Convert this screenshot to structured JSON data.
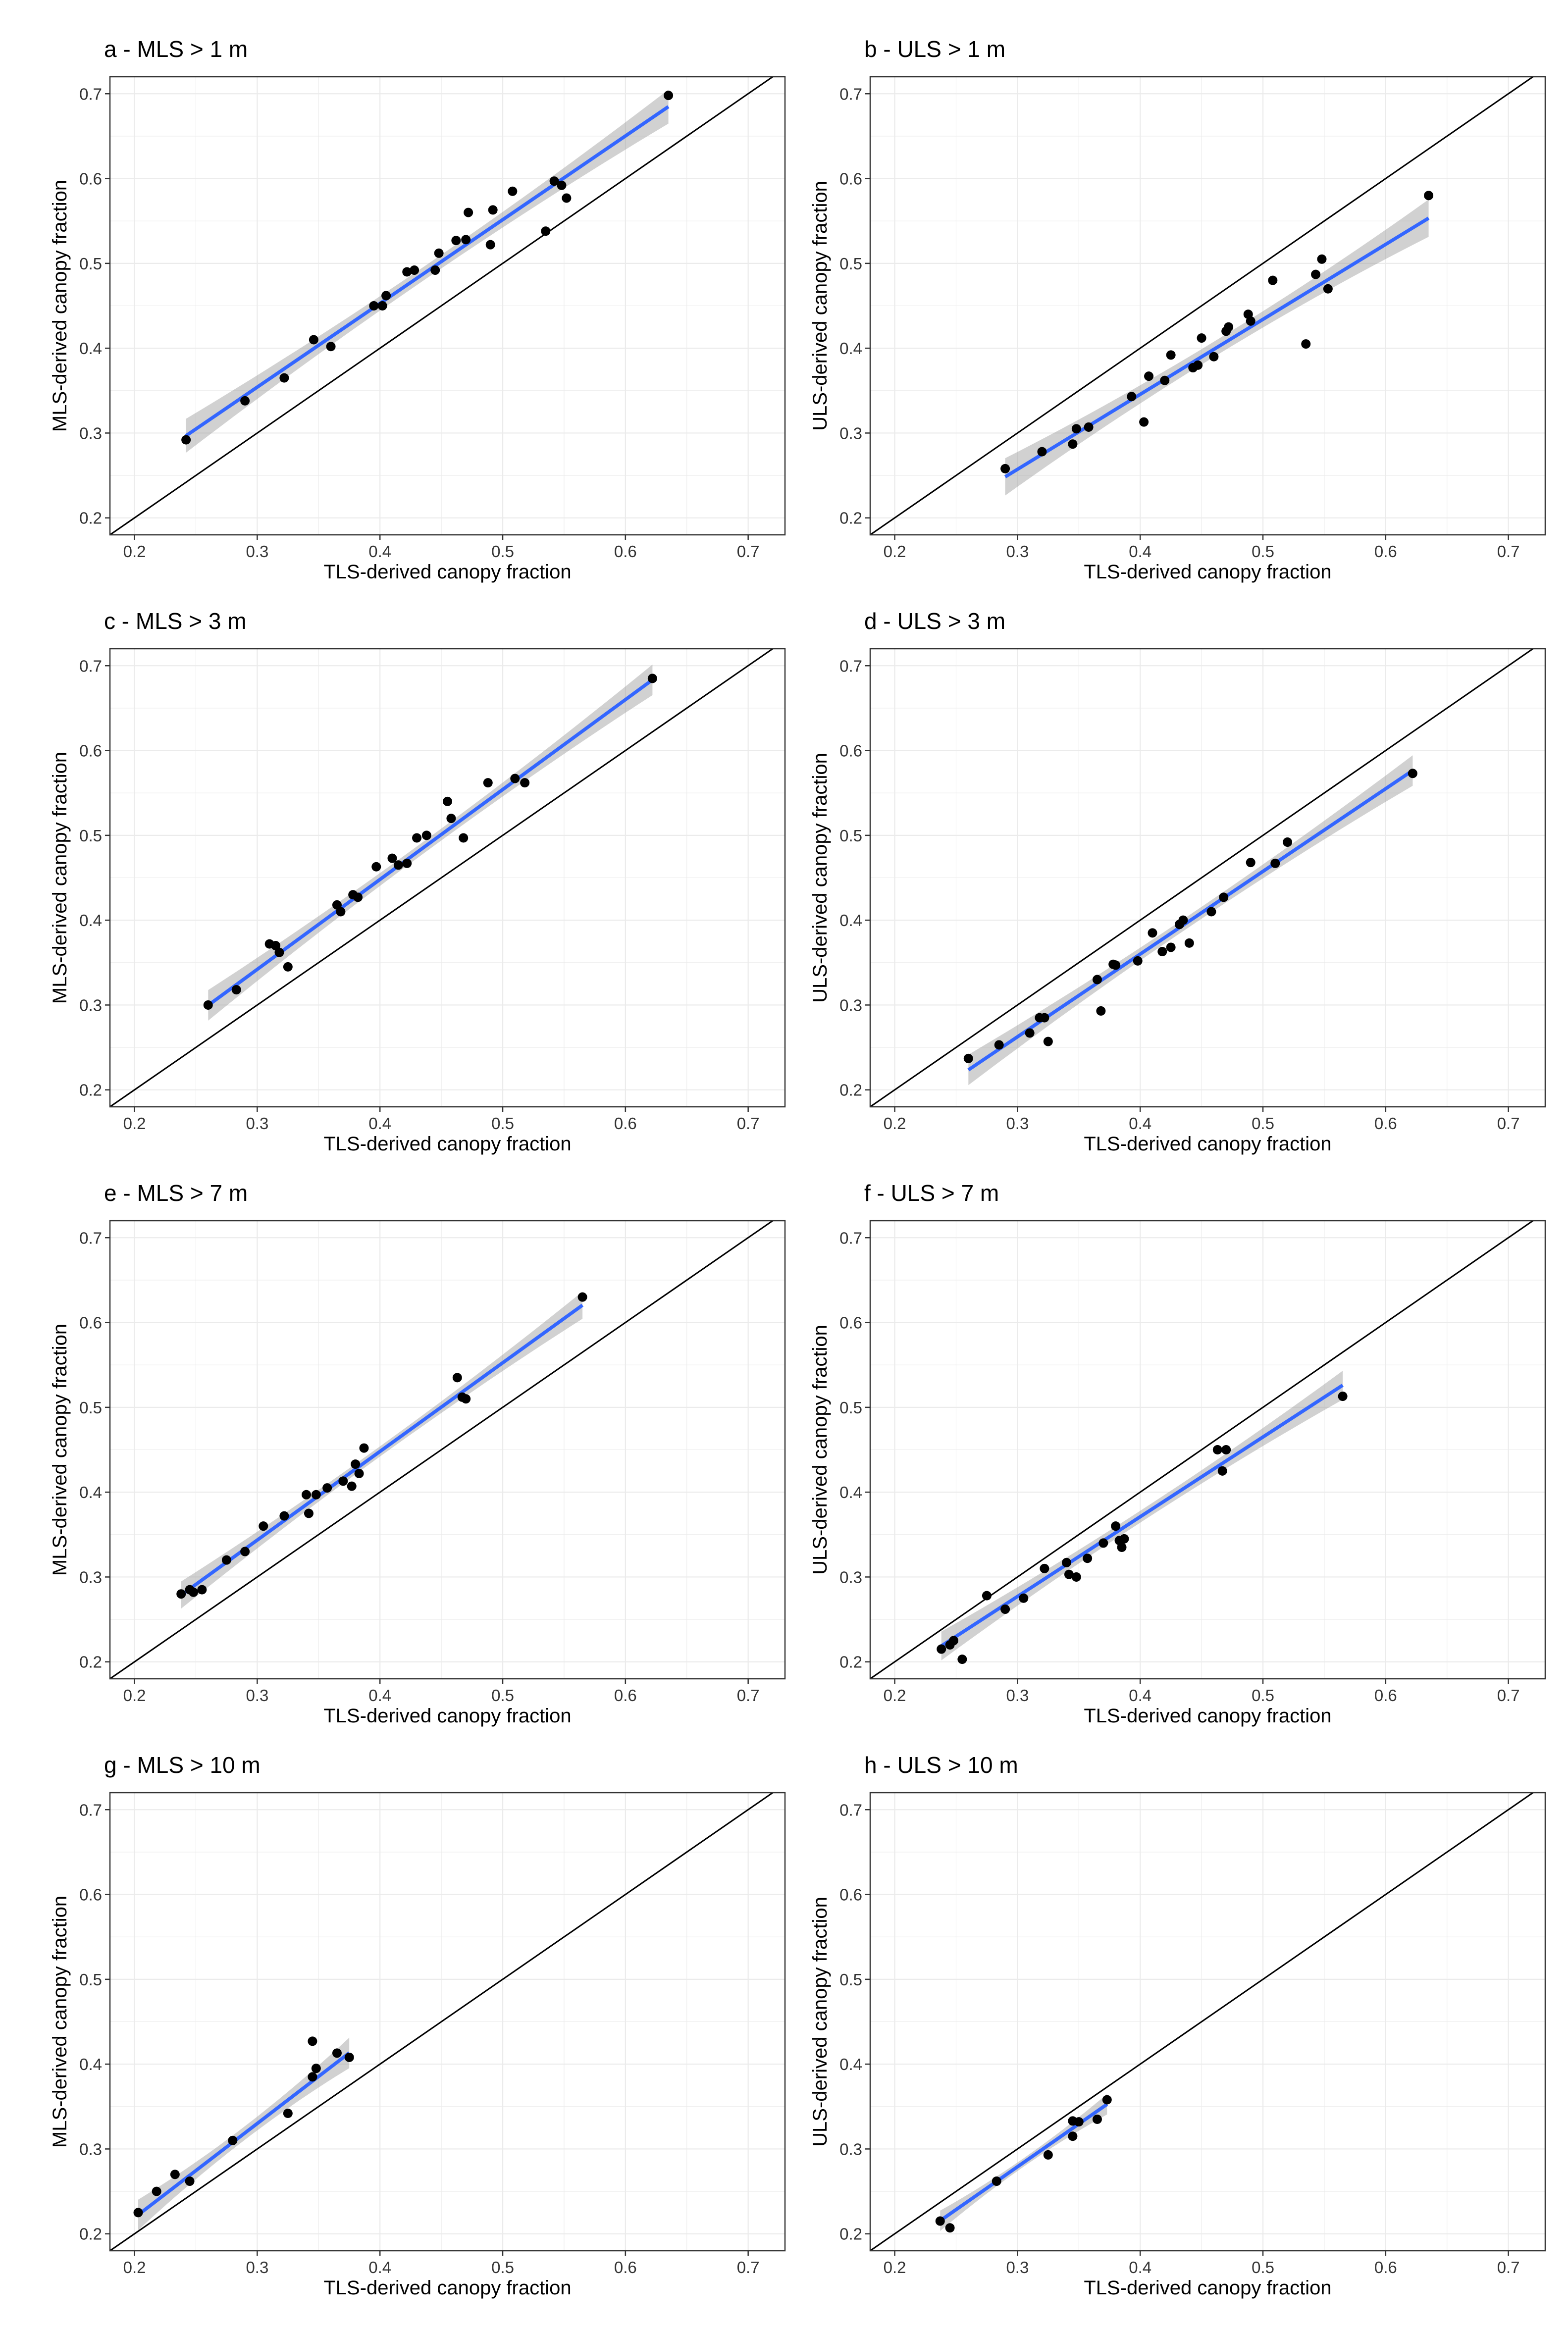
{
  "figure": {
    "panels": [
      {
        "title": "a - MLS > 1 m",
        "xlabel": "TLS-derived canopy fraction",
        "ylabel": "MLS-derived canopy fraction",
        "x_ticks": [
          "0.2",
          "0.3",
          "0.4",
          "0.5",
          "0.6",
          "0.7"
        ],
        "y_ticks": [
          "0.2",
          "0.3",
          "0.4",
          "0.5",
          "0.6",
          "0.7"
        ]
      },
      {
        "title": "b - ULS > 1 m",
        "xlabel": "TLS-derived canopy fraction",
        "ylabel": "ULS-derived canopy fraction",
        "x_ticks": [
          "0.2",
          "0.3",
          "0.4",
          "0.5",
          "0.6",
          "0.7"
        ],
        "y_ticks": [
          "0.2",
          "0.3",
          "0.4",
          "0.5",
          "0.6",
          "0.7"
        ]
      },
      {
        "title": "c - MLS > 3 m",
        "xlabel": "TLS-derived canopy fraction",
        "ylabel": "MLS-derived canopy fraction",
        "x_ticks": [
          "0.2",
          "0.3",
          "0.4",
          "0.5",
          "0.6",
          "0.7"
        ],
        "y_ticks": [
          "0.2",
          "0.3",
          "0.4",
          "0.5",
          "0.6",
          "0.7"
        ]
      },
      {
        "title": "d - ULS > 3 m",
        "xlabel": "TLS-derived canopy fraction",
        "ylabel": "ULS-derived canopy fraction",
        "x_ticks": [
          "0.2",
          "0.3",
          "0.4",
          "0.5",
          "0.6",
          "0.7"
        ],
        "y_ticks": [
          "0.2",
          "0.3",
          "0.4",
          "0.5",
          "0.6",
          "0.7"
        ]
      },
      {
        "title": "e - MLS > 7 m",
        "xlabel": "TLS-derived canopy fraction",
        "ylabel": "MLS-derived canopy fraction",
        "x_ticks": [
          "0.2",
          "0.3",
          "0.4",
          "0.5",
          "0.6",
          "0.7"
        ],
        "y_ticks": [
          "0.2",
          "0.3",
          "0.4",
          "0.5",
          "0.6",
          "0.7"
        ]
      },
      {
        "title": "f - ULS > 7 m",
        "xlabel": "TLS-derived canopy fraction",
        "ylabel": "ULS-derived canopy fraction",
        "x_ticks": [
          "0.2",
          "0.3",
          "0.4",
          "0.5",
          "0.6",
          "0.7"
        ],
        "y_ticks": [
          "0.2",
          "0.3",
          "0.4",
          "0.5",
          "0.6",
          "0.7"
        ]
      },
      {
        "title": "g - MLS > 10 m",
        "xlabel": "TLS-derived canopy fraction",
        "ylabel": "MLS-derived canopy fraction",
        "x_ticks": [
          "0.2",
          "0.3",
          "0.4",
          "0.5",
          "0.6",
          "0.7"
        ],
        "y_ticks": [
          "0.2",
          "0.3",
          "0.4",
          "0.5",
          "0.6",
          "0.7"
        ]
      },
      {
        "title": "h - ULS > 10 m",
        "xlabel": "TLS-derived canopy fraction",
        "ylabel": "ULS-derived canopy fraction",
        "x_ticks": [
          "0.2",
          "0.3",
          "0.4",
          "0.5",
          "0.6",
          "0.7"
        ],
        "y_ticks": [
          "0.2",
          "0.3",
          "0.4",
          "0.5",
          "0.6",
          "0.7"
        ]
      }
    ]
  },
  "colors": {
    "points": "#000000",
    "fit_line": "#3366FF",
    "confidence_band": "#999999",
    "one_to_one_line": "#000000",
    "grid": "#EBEBEB",
    "panel_border": "#333333"
  },
  "chart_data": [
    {
      "type": "scatter",
      "title": "a - MLS > 1 m",
      "xlabel": "TLS-derived canopy fraction",
      "ylabel": "MLS-derived canopy fraction",
      "xlim": [
        0.18,
        0.73
      ],
      "ylim": [
        0.18,
        0.72
      ],
      "grid": true,
      "identity_line": true,
      "points": [
        [
          0.242,
          0.292
        ],
        [
          0.29,
          0.338
        ],
        [
          0.322,
          0.365
        ],
        [
          0.346,
          0.41
        ],
        [
          0.36,
          0.402
        ],
        [
          0.395,
          0.45
        ],
        [
          0.402,
          0.45
        ],
        [
          0.405,
          0.462
        ],
        [
          0.422,
          0.49
        ],
        [
          0.428,
          0.492
        ],
        [
          0.445,
          0.492
        ],
        [
          0.448,
          0.512
        ],
        [
          0.462,
          0.527
        ],
        [
          0.47,
          0.528
        ],
        [
          0.472,
          0.56
        ],
        [
          0.49,
          0.522
        ],
        [
          0.492,
          0.563
        ],
        [
          0.508,
          0.585
        ],
        [
          0.535,
          0.538
        ],
        [
          0.542,
          0.597
        ],
        [
          0.548,
          0.592
        ],
        [
          0.552,
          0.577
        ],
        [
          0.635,
          0.698
        ]
      ],
      "fit": {
        "x_range": [
          0.242,
          0.635
        ],
        "slope": 0.987,
        "intercept": 0.058,
        "ci_half_width_ends": 0.02,
        "ci_half_width_mid": 0.008
      }
    },
    {
      "type": "scatter",
      "title": "b - ULS > 1 m",
      "xlabel": "TLS-derived canopy fraction",
      "ylabel": "ULS-derived canopy fraction",
      "xlim": [
        0.18,
        0.73
      ],
      "ylim": [
        0.18,
        0.72
      ],
      "grid": true,
      "identity_line": true,
      "points": [
        [
          0.29,
          0.258
        ],
        [
          0.32,
          0.278
        ],
        [
          0.345,
          0.287
        ],
        [
          0.348,
          0.305
        ],
        [
          0.358,
          0.307
        ],
        [
          0.393,
          0.343
        ],
        [
          0.403,
          0.313
        ],
        [
          0.407,
          0.367
        ],
        [
          0.42,
          0.362
        ],
        [
          0.425,
          0.392
        ],
        [
          0.443,
          0.377
        ],
        [
          0.447,
          0.38
        ],
        [
          0.45,
          0.412
        ],
        [
          0.46,
          0.39
        ],
        [
          0.47,
          0.42
        ],
        [
          0.472,
          0.425
        ],
        [
          0.488,
          0.44
        ],
        [
          0.49,
          0.432
        ],
        [
          0.508,
          0.48
        ],
        [
          0.535,
          0.405
        ],
        [
          0.543,
          0.487
        ],
        [
          0.548,
          0.505
        ],
        [
          0.553,
          0.47
        ],
        [
          0.635,
          0.58
        ]
      ],
      "fit": {
        "x_range": [
          0.29,
          0.635
        ],
        "slope": 0.884,
        "intercept": -0.008,
        "ci_half_width_ends": 0.022,
        "ci_half_width_mid": 0.009
      }
    },
    {
      "type": "scatter",
      "title": "c - MLS > 3 m",
      "xlabel": "TLS-derived canopy fraction",
      "ylabel": "MLS-derived canopy fraction",
      "xlim": [
        0.18,
        0.73
      ],
      "ylim": [
        0.18,
        0.72
      ],
      "grid": true,
      "identity_line": true,
      "points": [
        [
          0.26,
          0.3
        ],
        [
          0.283,
          0.318
        ],
        [
          0.31,
          0.372
        ],
        [
          0.315,
          0.37
        ],
        [
          0.318,
          0.362
        ],
        [
          0.325,
          0.345
        ],
        [
          0.365,
          0.418
        ],
        [
          0.368,
          0.41
        ],
        [
          0.378,
          0.43
        ],
        [
          0.382,
          0.427
        ],
        [
          0.397,
          0.463
        ],
        [
          0.41,
          0.473
        ],
        [
          0.415,
          0.465
        ],
        [
          0.422,
          0.467
        ],
        [
          0.43,
          0.497
        ],
        [
          0.438,
          0.5
        ],
        [
          0.455,
          0.54
        ],
        [
          0.458,
          0.52
        ],
        [
          0.468,
          0.497
        ],
        [
          0.488,
          0.562
        ],
        [
          0.51,
          0.567
        ],
        [
          0.518,
          0.562
        ],
        [
          0.622,
          0.685
        ]
      ],
      "fit": {
        "x_range": [
          0.26,
          0.622
        ],
        "slope": 1.06,
        "intercept": 0.024,
        "ci_half_width_ends": 0.018,
        "ci_half_width_mid": 0.007
      }
    },
    {
      "type": "scatter",
      "title": "d - ULS > 3 m",
      "xlabel": "TLS-derived canopy fraction",
      "ylabel": "ULS-derived canopy fraction",
      "xlim": [
        0.18,
        0.73
      ],
      "ylim": [
        0.18,
        0.72
      ],
      "grid": true,
      "identity_line": true,
      "points": [
        [
          0.26,
          0.237
        ],
        [
          0.285,
          0.253
        ],
        [
          0.31,
          0.267
        ],
        [
          0.318,
          0.285
        ],
        [
          0.322,
          0.285
        ],
        [
          0.325,
          0.257
        ],
        [
          0.365,
          0.33
        ],
        [
          0.368,
          0.293
        ],
        [
          0.378,
          0.348
        ],
        [
          0.38,
          0.347
        ],
        [
          0.398,
          0.352
        ],
        [
          0.41,
          0.385
        ],
        [
          0.418,
          0.363
        ],
        [
          0.425,
          0.368
        ],
        [
          0.432,
          0.395
        ],
        [
          0.435,
          0.4
        ],
        [
          0.44,
          0.373
        ],
        [
          0.458,
          0.41
        ],
        [
          0.468,
          0.427
        ],
        [
          0.49,
          0.468
        ],
        [
          0.51,
          0.467
        ],
        [
          0.52,
          0.492
        ],
        [
          0.622,
          0.573
        ]
      ],
      "fit": {
        "x_range": [
          0.26,
          0.622
        ],
        "slope": 0.975,
        "intercept": -0.03,
        "ci_half_width_ends": 0.018,
        "ci_half_width_mid": 0.007
      }
    },
    {
      "type": "scatter",
      "title": "e - MLS > 7 m",
      "xlabel": "TLS-derived canopy fraction",
      "ylabel": "MLS-derived canopy fraction",
      "xlim": [
        0.18,
        0.73
      ],
      "ylim": [
        0.18,
        0.72
      ],
      "grid": true,
      "identity_line": true,
      "points": [
        [
          0.238,
          0.28
        ],
        [
          0.245,
          0.285
        ],
        [
          0.248,
          0.282
        ],
        [
          0.255,
          0.285
        ],
        [
          0.275,
          0.32
        ],
        [
          0.29,
          0.33
        ],
        [
          0.305,
          0.36
        ],
        [
          0.322,
          0.372
        ],
        [
          0.34,
          0.397
        ],
        [
          0.342,
          0.375
        ],
        [
          0.348,
          0.397
        ],
        [
          0.357,
          0.405
        ],
        [
          0.37,
          0.413
        ],
        [
          0.377,
          0.407
        ],
        [
          0.38,
          0.433
        ],
        [
          0.383,
          0.422
        ],
        [
          0.387,
          0.452
        ],
        [
          0.463,
          0.535
        ],
        [
          0.467,
          0.512
        ],
        [
          0.47,
          0.51
        ],
        [
          0.565,
          0.63
        ]
      ],
      "fit": {
        "x_range": [
          0.238,
          0.565
        ],
        "slope": 1.045,
        "intercept": 0.03,
        "ci_half_width_ends": 0.016,
        "ci_half_width_mid": 0.006
      }
    },
    {
      "type": "scatter",
      "title": "f - ULS > 7 m",
      "xlabel": "TLS-derived canopy fraction",
      "ylabel": "ULS-derived canopy fraction",
      "xlim": [
        0.18,
        0.73
      ],
      "ylim": [
        0.18,
        0.72
      ],
      "grid": true,
      "identity_line": true,
      "points": [
        [
          0.238,
          0.215
        ],
        [
          0.245,
          0.22
        ],
        [
          0.248,
          0.225
        ],
        [
          0.255,
          0.203
        ],
        [
          0.275,
          0.278
        ],
        [
          0.29,
          0.262
        ],
        [
          0.305,
          0.275
        ],
        [
          0.322,
          0.31
        ],
        [
          0.34,
          0.317
        ],
        [
          0.342,
          0.303
        ],
        [
          0.348,
          0.3
        ],
        [
          0.357,
          0.322
        ],
        [
          0.37,
          0.34
        ],
        [
          0.38,
          0.36
        ],
        [
          0.383,
          0.343
        ],
        [
          0.385,
          0.335
        ],
        [
          0.387,
          0.345
        ],
        [
          0.463,
          0.45
        ],
        [
          0.467,
          0.425
        ],
        [
          0.47,
          0.45
        ],
        [
          0.565,
          0.513
        ]
      ],
      "fit": {
        "x_range": [
          0.238,
          0.565
        ],
        "slope": 0.94,
        "intercept": -0.005,
        "ci_half_width_ends": 0.017,
        "ci_half_width_mid": 0.007
      }
    },
    {
      "type": "scatter",
      "title": "g - MLS > 10 m",
      "xlabel": "TLS-derived canopy fraction",
      "ylabel": "MLS-derived canopy fraction",
      "xlim": [
        0.18,
        0.73
      ],
      "ylim": [
        0.18,
        0.72
      ],
      "grid": true,
      "identity_line": true,
      "points": [
        [
          0.203,
          0.225
        ],
        [
          0.218,
          0.25
        ],
        [
          0.233,
          0.27
        ],
        [
          0.245,
          0.262
        ],
        [
          0.28,
          0.31
        ],
        [
          0.325,
          0.342
        ],
        [
          0.345,
          0.427
        ],
        [
          0.345,
          0.385
        ],
        [
          0.348,
          0.395
        ],
        [
          0.365,
          0.413
        ],
        [
          0.375,
          0.408
        ]
      ],
      "fit": {
        "x_range": [
          0.203,
          0.375
        ],
        "slope": 1.11,
        "intercept": -0.003,
        "ci_half_width_ends": 0.018,
        "ci_half_width_mid": 0.008
      }
    },
    {
      "type": "scatter",
      "title": "h - ULS > 10 m",
      "xlabel": "TLS-derived canopy fraction",
      "ylabel": "ULS-derived canopy fraction",
      "xlim": [
        0.18,
        0.73
      ],
      "ylim": [
        0.18,
        0.72
      ],
      "grid": true,
      "identity_line": true,
      "points": [
        [
          0.237,
          0.215
        ],
        [
          0.245,
          0.207
        ],
        [
          0.283,
          0.262
        ],
        [
          0.325,
          0.293
        ],
        [
          0.345,
          0.315
        ],
        [
          0.345,
          0.333
        ],
        [
          0.35,
          0.332
        ],
        [
          0.365,
          0.335
        ],
        [
          0.373,
          0.358
        ]
      ],
      "fit": {
        "x_range": [
          0.237,
          0.373
        ],
        "slope": 1.01,
        "intercept": -0.024,
        "ci_half_width_ends": 0.012,
        "ci_half_width_mid": 0.005
      }
    }
  ]
}
